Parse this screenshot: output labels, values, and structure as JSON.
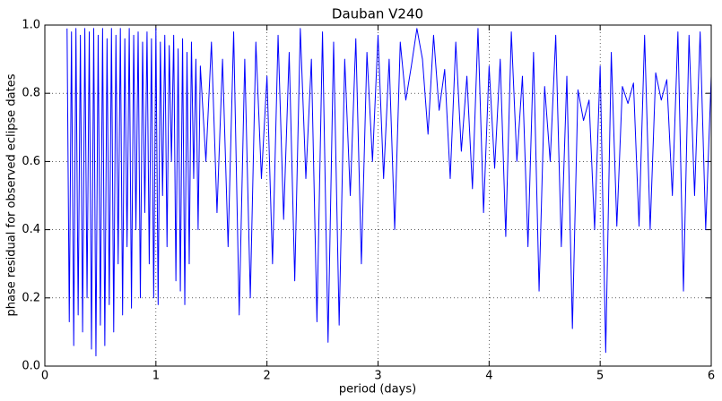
{
  "chart_data": {
    "type": "line",
    "title": "Dauban V240",
    "xlabel": "period (days)",
    "ylabel": "phase residual for observed eclipse dates",
    "color": "#0000ff",
    "grid": true,
    "xlim": [
      0,
      6
    ],
    "xticks": [
      0,
      1,
      2,
      3,
      4,
      5,
      6
    ],
    "ylim": [
      0,
      1
    ],
    "yticks": [
      {
        "value": 0,
        "label": "0.0"
      },
      0.2,
      0.4,
      0.6,
      0.8,
      {
        "value": 1,
        "label": "1.0"
      }
    ],
    "x": [
      0.2,
      0.22,
      0.24,
      0.26,
      0.28,
      0.3,
      0.32,
      0.34,
      0.36,
      0.38,
      0.4,
      0.42,
      0.44,
      0.46,
      0.48,
      0.5,
      0.52,
      0.54,
      0.56,
      0.58,
      0.6,
      0.62,
      0.64,
      0.66,
      0.68,
      0.7,
      0.72,
      0.74,
      0.76,
      0.78,
      0.8,
      0.82,
      0.84,
      0.86,
      0.88,
      0.9,
      0.92,
      0.94,
      0.96,
      0.98,
      1.0,
      1.02,
      1.04,
      1.06,
      1.08,
      1.1,
      1.12,
      1.14,
      1.16,
      1.18,
      1.2,
      1.22,
      1.24,
      1.26,
      1.28,
      1.3,
      1.32,
      1.34,
      1.36,
      1.38,
      1.4,
      1.45,
      1.5,
      1.55,
      1.6,
      1.65,
      1.7,
      1.75,
      1.8,
      1.85,
      1.9,
      1.95,
      2.0,
      2.05,
      2.1,
      2.15,
      2.2,
      2.25,
      2.3,
      2.35,
      2.4,
      2.45,
      2.5,
      2.55,
      2.6,
      2.65,
      2.7,
      2.75,
      2.8,
      2.85,
      2.9,
      2.95,
      3.0,
      3.05,
      3.1,
      3.15,
      3.2,
      3.25,
      3.3,
      3.35,
      3.4,
      3.45,
      3.5,
      3.55,
      3.6,
      3.65,
      3.7,
      3.75,
      3.8,
      3.85,
      3.9,
      3.95,
      4.0,
      4.05,
      4.1,
      4.15,
      4.2,
      4.25,
      4.3,
      4.35,
      4.4,
      4.45,
      4.5,
      4.55,
      4.6,
      4.65,
      4.7,
      4.75,
      4.8,
      4.85,
      4.9,
      4.95,
      5.0,
      5.05,
      5.1,
      5.15,
      5.2,
      5.25,
      5.3,
      5.35,
      5.4,
      5.45,
      5.5,
      5.55,
      5.6,
      5.65,
      5.7,
      5.75,
      5.8,
      5.85,
      5.9,
      5.95,
      6.0
    ],
    "values": [
      0.99,
      0.13,
      0.98,
      0.06,
      0.99,
      0.15,
      0.97,
      0.1,
      0.99,
      0.2,
      0.98,
      0.05,
      0.99,
      0.03,
      0.97,
      0.12,
      0.99,
      0.06,
      0.96,
      0.18,
      0.99,
      0.1,
      0.97,
      0.3,
      0.99,
      0.15,
      0.96,
      0.35,
      0.99,
      0.17,
      0.97,
      0.4,
      0.98,
      0.2,
      0.95,
      0.45,
      0.98,
      0.3,
      0.96,
      0.2,
      0.99,
      0.18,
      0.95,
      0.5,
      0.97,
      0.35,
      0.94,
      0.6,
      0.97,
      0.25,
      0.93,
      0.22,
      0.96,
      0.18,
      0.92,
      0.3,
      0.95,
      0.55,
      0.9,
      0.4,
      0.88,
      0.6,
      0.95,
      0.45,
      0.9,
      0.35,
      0.98,
      0.15,
      0.9,
      0.2,
      0.95,
      0.55,
      0.85,
      0.3,
      0.97,
      0.43,
      0.92,
      0.25,
      0.99,
      0.55,
      0.9,
      0.13,
      0.98,
      0.07,
      0.95,
      0.12,
      0.9,
      0.5,
      0.96,
      0.3,
      0.92,
      0.6,
      0.97,
      0.55,
      0.9,
      0.4,
      0.95,
      0.78,
      0.88,
      0.99,
      0.9,
      0.68,
      0.97,
      0.75,
      0.87,
      0.55,
      0.95,
      0.63,
      0.85,
      0.52,
      0.99,
      0.45,
      0.88,
      0.58,
      0.9,
      0.38,
      0.98,
      0.6,
      0.85,
      0.35,
      0.92,
      0.22,
      0.82,
      0.6,
      0.97,
      0.35,
      0.85,
      0.11,
      0.81,
      0.72,
      0.78,
      0.4,
      0.88,
      0.04,
      0.92,
      0.41,
      0.82,
      0.77,
      0.83,
      0.41,
      0.97,
      0.4,
      0.86,
      0.78,
      0.84,
      0.5,
      0.98,
      0.22,
      0.97,
      0.5,
      0.98,
      0.4,
      0.85
    ]
  }
}
